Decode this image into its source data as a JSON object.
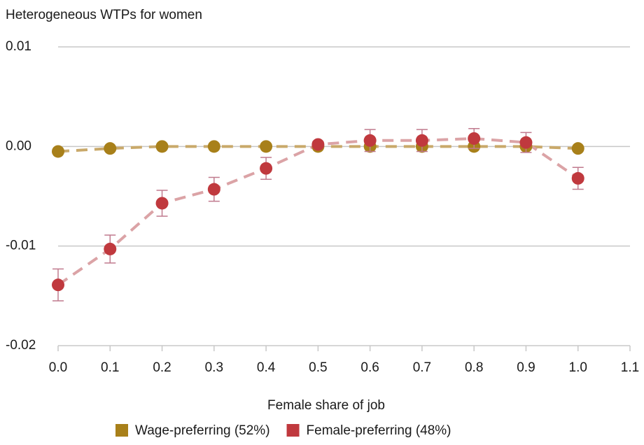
{
  "chart_data": {
    "type": "scatter",
    "title": "Heterogeneous WTPs for women",
    "x_label": "Female share of job",
    "x": [
      0,
      0.1,
      0.2,
      0.3,
      0.4,
      0.5,
      0.6,
      0.7,
      0.8,
      0.9,
      1.0
    ],
    "series": [
      {
        "name": "Wage-preferring (52%)",
        "color": "#a8801a",
        "line_color": "#c9a96a",
        "values": [
          -0.0005,
          -0.0002,
          0,
          0,
          0,
          0,
          0,
          0,
          0,
          0,
          -0.0002
        ]
      },
      {
        "name": "Female-preferring (48%)",
        "color": "#c0393e",
        "line_color": "#dba3a6",
        "error_color": "#c07a8e",
        "values": [
          -0.0139,
          -0.0103,
          -0.0057,
          -0.0043,
          -0.0022,
          0.0002,
          0.0006,
          0.0006,
          0.0008,
          0.0004,
          -0.0032
        ],
        "errors": [
          0.0016,
          0.0014,
          0.0013,
          0.0012,
          0.0011,
          0.0003,
          0.0011,
          0.0011,
          0.001,
          0.001,
          0.0011
        ]
      }
    ],
    "xlim": [
      0,
      1.1
    ],
    "xticks": [
      {
        "value": 0,
        "label": "0.0"
      },
      0.1,
      0.2,
      0.3,
      0.4,
      0.5,
      0.6,
      0.7,
      0.8,
      0.9,
      {
        "value": 1.0,
        "label": "1.0"
      },
      1.1
    ],
    "ylim": [
      -0.02,
      0.01
    ],
    "yticks": [
      -0.02,
      -0.01,
      {
        "value": 0,
        "label": "0.00"
      },
      0.01
    ],
    "grid": true
  }
}
